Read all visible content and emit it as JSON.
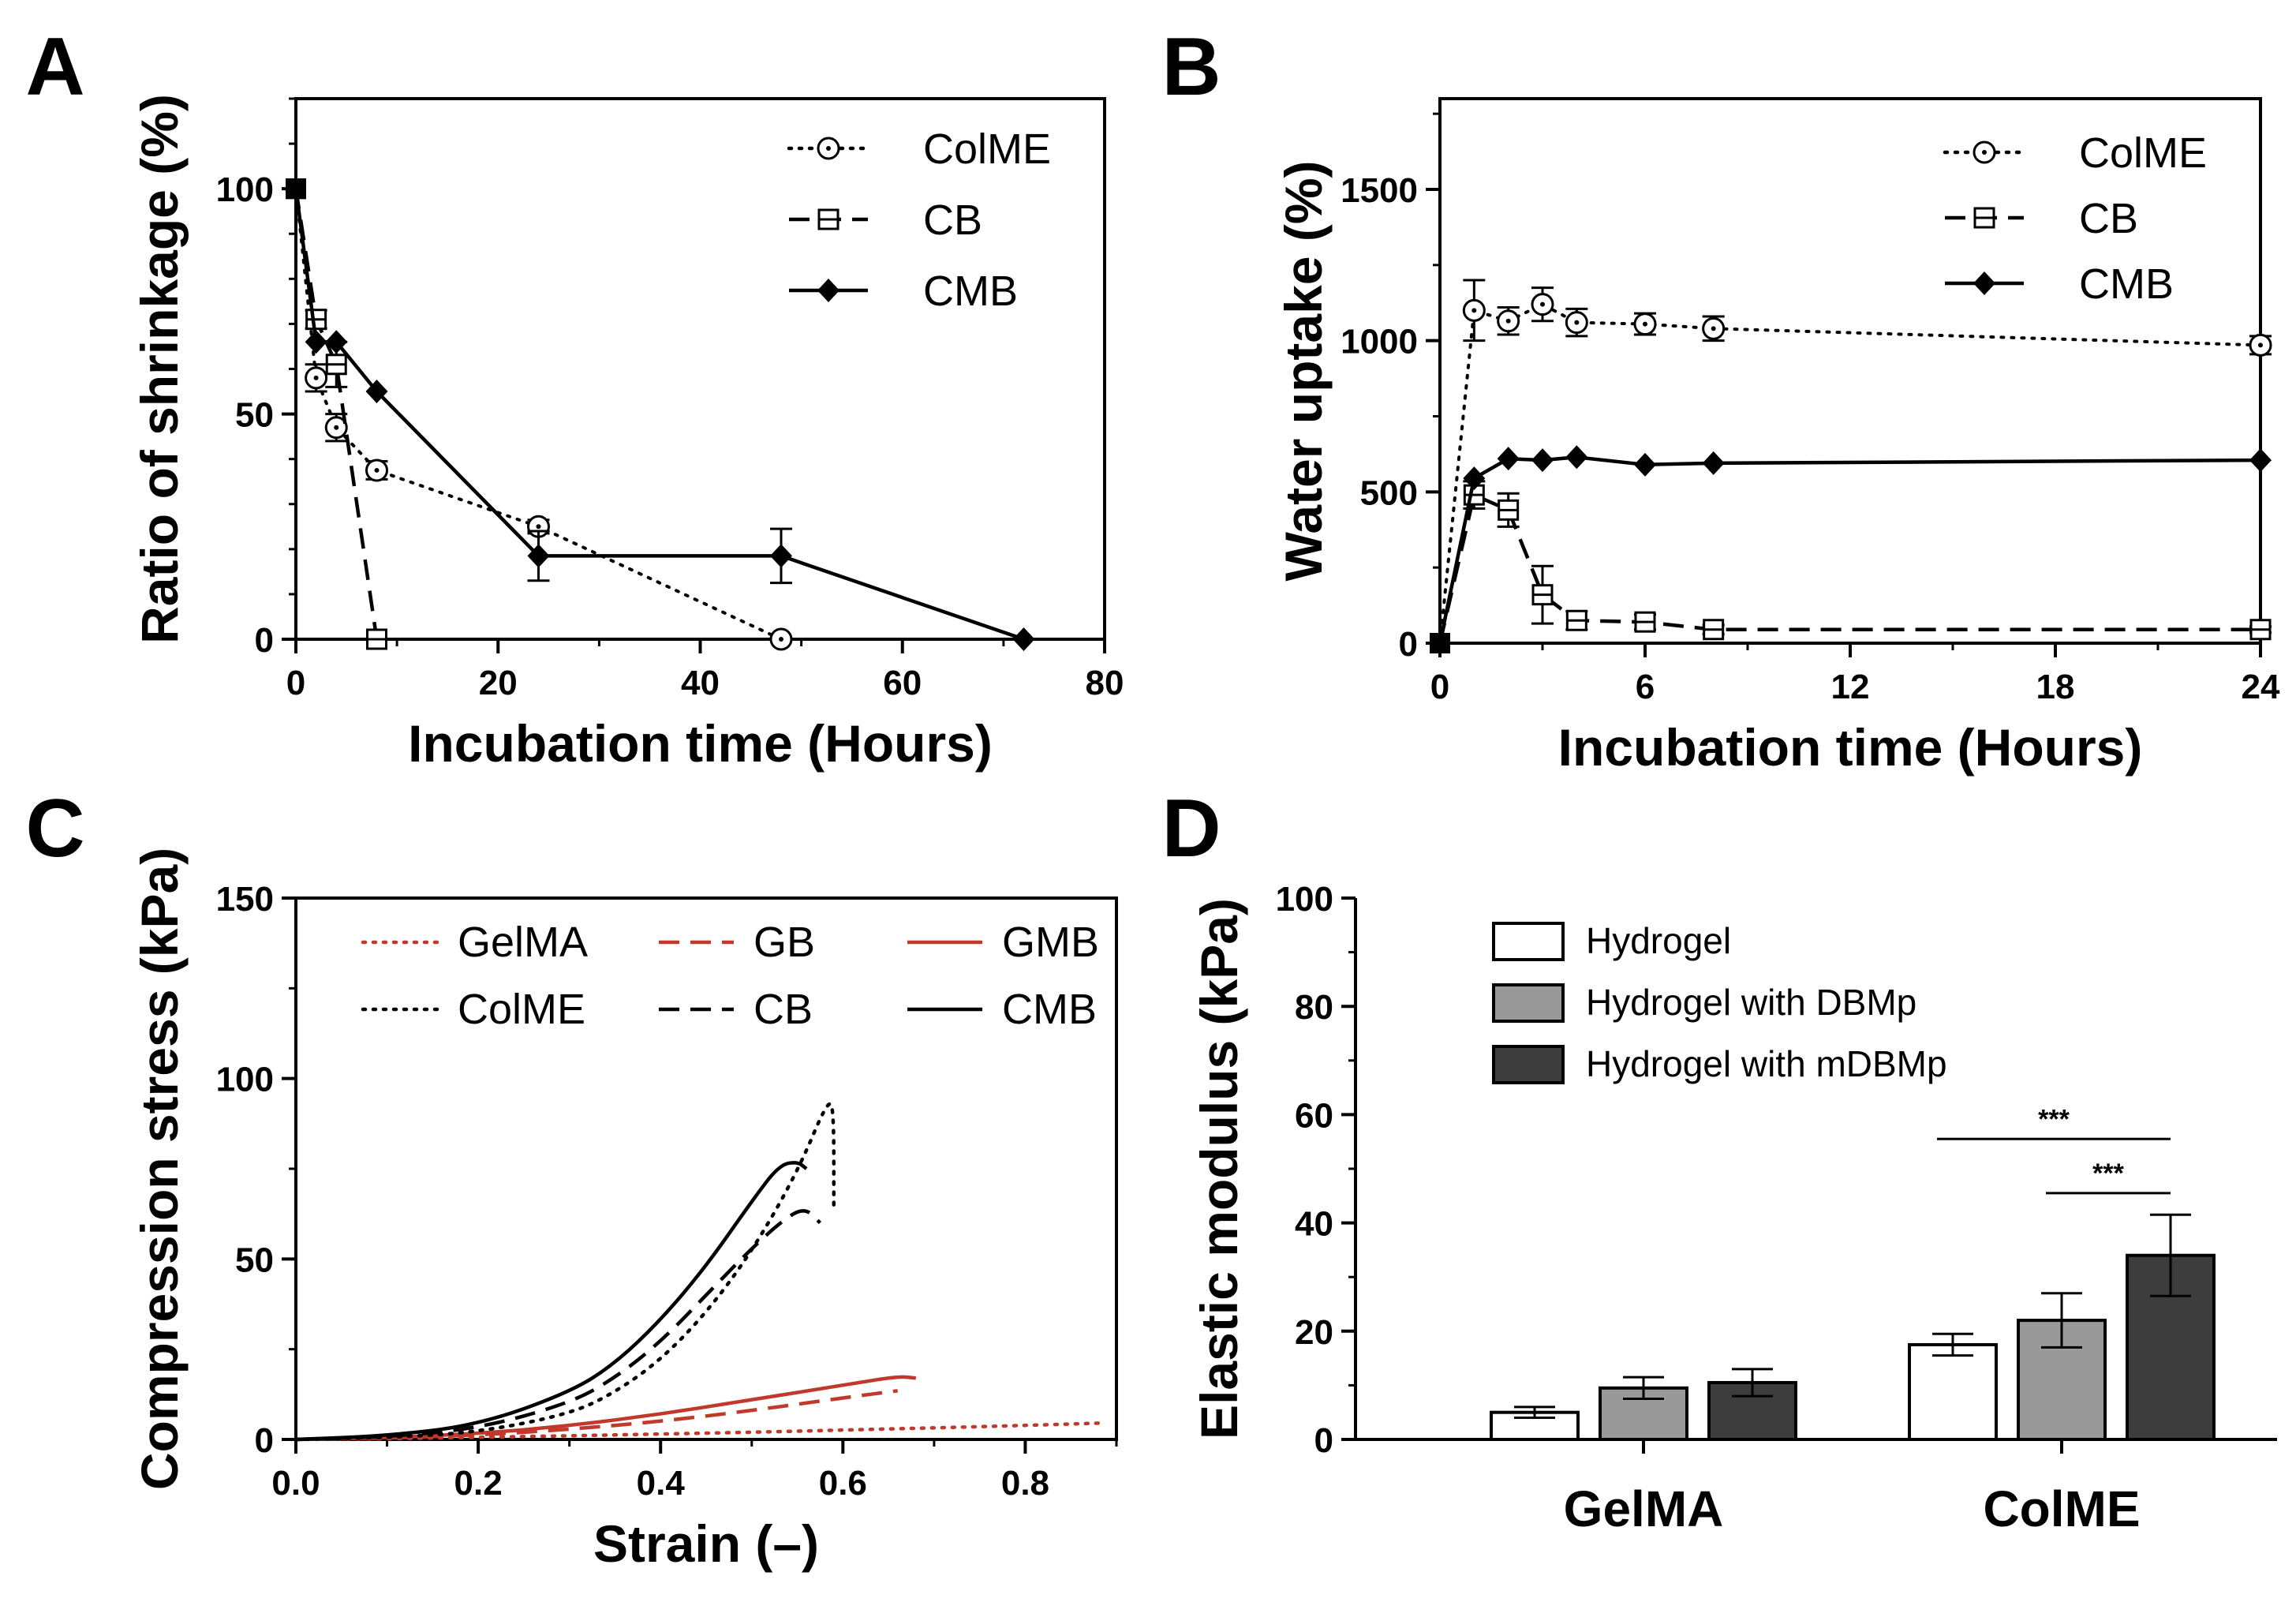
{
  "panels": {
    "A": "A",
    "B": "B",
    "C": "C",
    "D": "D"
  },
  "chart_data": [
    {
      "id": "A",
      "type": "line",
      "xlabel": "Incubation time (Hours)",
      "ylabel": "Ratio of shrinkage (%)",
      "xlim": [
        0,
        80
      ],
      "ylim": [
        0,
        120
      ],
      "xticks": [
        0,
        20,
        40,
        60,
        80
      ],
      "yticks": [
        0,
        50,
        100
      ],
      "legend_position": "top-right",
      "series": [
        {
          "name": "ColME",
          "style": "dotted",
          "marker": "circle-dot",
          "x": [
            0,
            2,
            4,
            8,
            24,
            48
          ],
          "y": [
            100,
            58,
            47,
            37.5,
            25,
            0
          ],
          "err": [
            0,
            3,
            3,
            2,
            1.5,
            0
          ]
        },
        {
          "name": "CB",
          "style": "dashed",
          "marker": "square-line",
          "x": [
            0,
            2,
            4,
            8
          ],
          "y": [
            100,
            71,
            61,
            0
          ],
          "err": [
            0,
            2,
            5,
            0
          ]
        },
        {
          "name": "CMB",
          "style": "solid",
          "marker": "diamond",
          "x": [
            0,
            2,
            4,
            8,
            24,
            48,
            72
          ],
          "y": [
            100,
            66,
            66,
            55,
            18.5,
            18.5,
            0
          ],
          "err": [
            0,
            0,
            0,
            0,
            5.5,
            6,
            0
          ]
        }
      ]
    },
    {
      "id": "B",
      "type": "line",
      "xlabel": "Incubation time (Hours)",
      "ylabel": "Water uptake (%)",
      "xlim": [
        0,
        24
      ],
      "ylim": [
        0,
        1800
      ],
      "xticks": [
        0,
        6,
        12,
        18,
        24
      ],
      "yticks": [
        0,
        500,
        1000,
        1500
      ],
      "legend_position": "top-right",
      "series": [
        {
          "name": "ColME",
          "style": "dotted",
          "marker": "circle-dot",
          "x": [
            0,
            1,
            2,
            3,
            4,
            6,
            8,
            24
          ],
          "y": [
            0,
            1100,
            1065,
            1120,
            1060,
            1055,
            1040,
            985
          ],
          "err": [
            0,
            100,
            45,
            55,
            45,
            35,
            40,
            30
          ]
        },
        {
          "name": "CB",
          "style": "dashed",
          "marker": "square-line",
          "x": [
            0,
            1,
            2,
            3,
            4,
            6,
            8,
            24
          ],
          "y": [
            0,
            490,
            440,
            160,
            75,
            70,
            45,
            45
          ],
          "err": [
            0,
            45,
            55,
            95,
            30,
            25,
            15,
            10
          ]
        },
        {
          "name": "CMB",
          "style": "solid",
          "marker": "diamond",
          "x": [
            0,
            1,
            2,
            3,
            4,
            6,
            8,
            24
          ],
          "y": [
            0,
            545,
            610,
            605,
            615,
            590,
            595,
            605
          ],
          "err": [
            0,
            0,
            0,
            0,
            0,
            0,
            0,
            0
          ]
        }
      ]
    },
    {
      "id": "C",
      "type": "line",
      "xlabel": "Strain (–)",
      "ylabel": "Compression stress (kPa)",
      "xlim": [
        0,
        0.9
      ],
      "ylim": [
        0,
        150
      ],
      "xticks": [
        "0.0",
        "0.2",
        "0.4",
        "0.6",
        "0.8"
      ],
      "yticks": [
        0,
        50,
        100,
        150
      ],
      "legend_position": "top-left",
      "series": [
        {
          "name": "GelMA",
          "style": "dotted",
          "color": "#c0392b",
          "x": [
            0,
            0.1,
            0.2,
            0.3,
            0.4,
            0.5,
            0.6,
            0.7,
            0.8,
            0.88
          ],
          "y": [
            0,
            0.2,
            0.6,
            1.0,
            1.5,
            2.0,
            2.6,
            3.2,
            3.9,
            4.5
          ]
        },
        {
          "name": "GB",
          "style": "dashed",
          "color": "#c0392b",
          "x": [
            0,
            0.1,
            0.2,
            0.3,
            0.4,
            0.5,
            0.6,
            0.66
          ],
          "y": [
            0,
            0.4,
            1.2,
            2.8,
            5.0,
            8.0,
            11.5,
            13.5
          ]
        },
        {
          "name": "GMB",
          "style": "solid",
          "color": "#c0392b",
          "x": [
            0,
            0.1,
            0.2,
            0.3,
            0.4,
            0.5,
            0.6,
            0.66,
            0.68
          ],
          "y": [
            0,
            0.5,
            1.6,
            3.8,
            7.0,
            11.0,
            15.0,
            17.5,
            17.0
          ]
        },
        {
          "name": "ColME",
          "style": "dotted",
          "color": "#000000",
          "x": [
            0,
            0.1,
            0.2,
            0.3,
            0.35,
            0.4,
            0.45,
            0.5,
            0.55,
            0.585,
            0.59,
            0.59
          ],
          "y": [
            0,
            0.5,
            2,
            7,
            13,
            22,
            35,
            52,
            74,
            95,
            90,
            65
          ]
        },
        {
          "name": "CB",
          "style": "dashed",
          "color": "#000000",
          "x": [
            0,
            0.1,
            0.2,
            0.3,
            0.35,
            0.4,
            0.45,
            0.5,
            0.54,
            0.56,
            0.575
          ],
          "y": [
            0,
            0.7,
            3,
            10,
            17,
            27,
            40,
            53,
            62,
            64,
            60
          ]
        },
        {
          "name": "CMB",
          "style": "solid",
          "color": "#000000",
          "x": [
            0,
            0.1,
            0.2,
            0.3,
            0.35,
            0.4,
            0.45,
            0.5,
            0.53,
            0.55,
            0.56
          ],
          "y": [
            0,
            1.0,
            4,
            13,
            21,
            33,
            48,
            66,
            76,
            77,
            75
          ]
        }
      ]
    },
    {
      "id": "D",
      "type": "bar",
      "xlabel": "",
      "ylabel": "Elastic modulus (kPa)",
      "ylim": [
        0,
        100
      ],
      "yticks": [
        0,
        20,
        40,
        60,
        80,
        100
      ],
      "categories": [
        "GelMA",
        "ColME"
      ],
      "legend_position": "top-left",
      "series": [
        {
          "name": "Hydrogel",
          "color": "#ffffff",
          "values": [
            5,
            17.5
          ],
          "err": [
            1,
            2
          ]
        },
        {
          "name": "Hydrogel with DBMp",
          "color": "#999999",
          "values": [
            9.5,
            22
          ],
          "err": [
            2,
            5
          ]
        },
        {
          "name": "Hydrogel with mDBMp",
          "color": "#3d3d3d",
          "values": [
            10.5,
            34
          ],
          "err": [
            2.5,
            7.5
          ]
        }
      ],
      "significance": [
        {
          "category": "ColME",
          "from": 0,
          "to": 2,
          "label": "***",
          "level": 55.5
        },
        {
          "category": "ColME",
          "from": 1,
          "to": 2,
          "label": "***",
          "level": 45.5
        }
      ]
    }
  ]
}
